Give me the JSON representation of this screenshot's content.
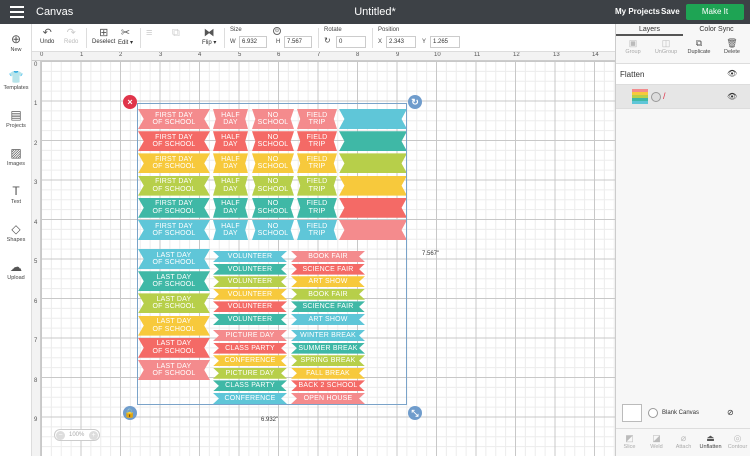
{
  "header": {
    "app_title": "Canvas",
    "doc_title": "Untitled*",
    "my_projects": "My Projects",
    "save": "Save",
    "make_it": "Make It"
  },
  "toolbar": {
    "undo": "Undo",
    "redo": "Redo",
    "deselect": "Deselect",
    "edit": "Edit",
    "flip": "Flip",
    "size_label": "Size",
    "w_label": "W",
    "w_value": "6.932",
    "h_label": "H",
    "h_value": "7.567",
    "rotate_label": "Rotate",
    "rotate_value": "0",
    "position_label": "Position",
    "x_label": "X",
    "x_value": "2.343",
    "y_label": "Y",
    "y_value": "1.265"
  },
  "sidebar": {
    "items": [
      {
        "label": "New",
        "icon": "plus-icon"
      },
      {
        "label": "Templates",
        "icon": "shirt-icon"
      },
      {
        "label": "Projects",
        "icon": "projects-icon"
      },
      {
        "label": "Images",
        "icon": "images-icon"
      },
      {
        "label": "Text",
        "icon": "text-icon"
      },
      {
        "label": "Shapes",
        "icon": "shapes-icon"
      },
      {
        "label": "Upload",
        "icon": "upload-icon"
      }
    ]
  },
  "rulers": {
    "h": [
      "0",
      "1",
      "2",
      "3",
      "4",
      "5",
      "6",
      "7",
      "8",
      "9",
      "10",
      "11",
      "12",
      "13",
      "14"
    ],
    "v": [
      "0",
      "1",
      "2",
      "3",
      "4",
      "5",
      "6",
      "7",
      "8",
      "9"
    ]
  },
  "canvas": {
    "width_dim": "6.932\"",
    "height_dim": "7.567\"",
    "zoom": "100%",
    "first_day": "FIRST DAY|OF SCHOOL",
    "last_day": "LAST DAY|OF SCHOOL",
    "half_day": "HALF|DAY",
    "no_school": "NO|SCHOOL",
    "field_trip": "FIELD|TRIP",
    "volunteer": "VOLUNTEER",
    "book_fair": "BOOK FAIR",
    "science_fair": "SCIENCE FAIR",
    "art_show": "ART SHOW",
    "mid_labels": [
      "PICTURE DAY",
      "CLASS PARTY",
      "CONFERENCE",
      "PICTURE DAY",
      "CLASS PARTY",
      "CONFERENCE"
    ],
    "right_labels": [
      "WINTER BREAK",
      "SUMMER BREAK",
      "SPRING BREAK",
      "FALL BREAK",
      "BACK 2 SCHOOL",
      "OPEN HOUSE"
    ]
  },
  "palette": {
    "pink": "#f48b8d",
    "salmon": "#f46a66",
    "yellow": "#f7c93c",
    "lime": "#b7cf4a",
    "teal": "#3fb8a6",
    "blue": "#5fc6d8",
    "green": "#1ea454"
  },
  "panel": {
    "tab_layers": "Layers",
    "tab_color_sync": "Color Sync",
    "tools": [
      "Group",
      "UnGroup",
      "Duplicate",
      "Delete"
    ],
    "layer_name": "Flatten",
    "blank_canvas": "Blank Canvas",
    "bottom_tools": [
      "Slice",
      "Weld",
      "Attach",
      "Unflatten",
      "Contour"
    ]
  }
}
